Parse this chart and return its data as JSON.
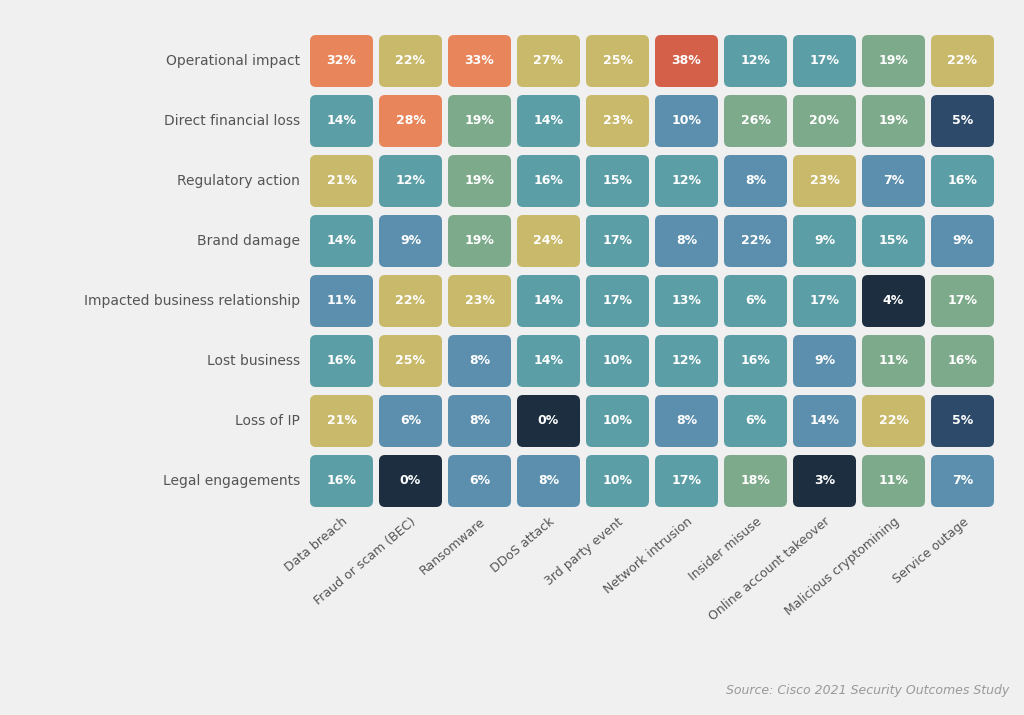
{
  "rows": [
    "Operational impact",
    "Direct financial loss",
    "Regulatory action",
    "Brand damage",
    "Impacted business relationship",
    "Lost business",
    "Loss of IP",
    "Legal engagements"
  ],
  "cols": [
    "Data breach",
    "Fraud or scam (BEC)",
    "Ransomware",
    "DDoS attack",
    "3rd party event",
    "Network intrusion",
    "Insider misuse",
    "Online account takeover",
    "Malicious cryptomining",
    "Service outage"
  ],
  "values": [
    [
      32,
      22,
      33,
      27,
      25,
      38,
      12,
      17,
      19,
      22
    ],
    [
      14,
      28,
      19,
      14,
      23,
      10,
      26,
      20,
      19,
      5
    ],
    [
      21,
      12,
      19,
      16,
      15,
      12,
      8,
      23,
      7,
      16
    ],
    [
      14,
      9,
      19,
      24,
      17,
      8,
      22,
      9,
      15,
      9
    ],
    [
      11,
      22,
      23,
      14,
      17,
      13,
      6,
      17,
      4,
      17
    ],
    [
      16,
      25,
      8,
      14,
      10,
      12,
      16,
      9,
      11,
      16
    ],
    [
      21,
      6,
      8,
      0,
      10,
      8,
      6,
      14,
      22,
      5
    ],
    [
      16,
      0,
      6,
      8,
      10,
      17,
      18,
      3,
      11,
      7
    ]
  ],
  "colors": [
    [
      "#E8855A",
      "#C9B96A",
      "#E8855A",
      "#C9B96A",
      "#C9B96A",
      "#D4604A",
      "#5B9EA6",
      "#5B9EA6",
      "#7DAA8A",
      "#C9B96A"
    ],
    [
      "#5B9EA6",
      "#E8855A",
      "#7DAA8A",
      "#5B9EA6",
      "#C9B96A",
      "#5B8FAD",
      "#7DAA8A",
      "#7DAA8A",
      "#7DAA8A",
      "#2E4A6A"
    ],
    [
      "#C9B96A",
      "#5B9EA6",
      "#7DAA8A",
      "#5B9EA6",
      "#5B9EA6",
      "#5B9EA6",
      "#5B8FAD",
      "#C9B96A",
      "#5B8FAD",
      "#5B9EA6"
    ],
    [
      "#5B9EA6",
      "#5B8FAD",
      "#7DAA8A",
      "#C9B96A",
      "#5B9EA6",
      "#5B8FAD",
      "#5B8FAD",
      "#5B9EA6",
      "#5B9EA6",
      "#5B8FAD"
    ],
    [
      "#5B8FAD",
      "#C9B96A",
      "#C9B96A",
      "#5B9EA6",
      "#5B9EA6",
      "#5B9EA6",
      "#5B9EA6",
      "#5B9EA6",
      "#1C2E40",
      "#7DAA8A"
    ],
    [
      "#5B9EA6",
      "#C9B96A",
      "#5B8FAD",
      "#5B9EA6",
      "#5B9EA6",
      "#5B9EA6",
      "#5B9EA6",
      "#5B8FAD",
      "#7DAA8A",
      "#7DAA8A"
    ],
    [
      "#C9B96A",
      "#5B8FAD",
      "#5B8FAD",
      "#1C2E40",
      "#5B9EA6",
      "#5B8FAD",
      "#5B9EA6",
      "#5B8FAD",
      "#C9B96A",
      "#2E4A6A"
    ],
    [
      "#5B9EA6",
      "#1C2E40",
      "#5B8FAD",
      "#5B8FAD",
      "#5B9EA6",
      "#5B9EA6",
      "#7DAA8A",
      "#1C2E40",
      "#7DAA8A",
      "#5B8FAD"
    ]
  ],
  "background_color": "#F0F0F0",
  "text_color": "#FFFFFF",
  "source_text": "Source: Cisco 2021 Security Outcomes Study"
}
